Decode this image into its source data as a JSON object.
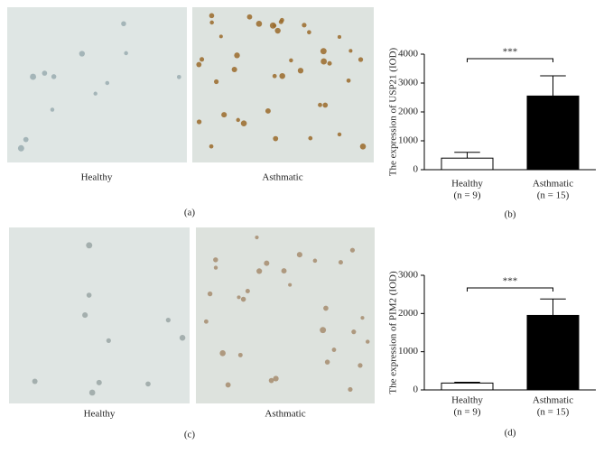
{
  "images": [
    {
      "labels": [
        "Healthy",
        "Asthmatic"
      ],
      "panel": "(a)"
    },
    {
      "labels": [
        "Healthy",
        "Asthmatic"
      ],
      "panel": "(c)"
    }
  ],
  "chart_data": [
    {
      "type": "bar",
      "panel": "(b)",
      "y_label": "The expression of USP21 (IOD)",
      "categories": [
        "Healthy",
        "Asthmatic"
      ],
      "sample_sizes": [
        "(n = 9)",
        "(n = 15)"
      ],
      "values": [
        400,
        2550
      ],
      "errors": [
        200,
        700
      ],
      "colors": [
        "#ffffff",
        "#000000"
      ],
      "significance": "***",
      "ylim": [
        0,
        4000
      ],
      "yticks": [
        0,
        1000,
        2000,
        3000,
        4000
      ]
    },
    {
      "type": "bar",
      "panel": "(d)",
      "y_label": "The expression of PIM2 (IOD)",
      "categories": [
        "Healthy",
        "Asthmatic"
      ],
      "sample_sizes": [
        "(n = 9)",
        "(n = 15)"
      ],
      "values": [
        180,
        1950
      ],
      "errors": [
        20,
        430
      ],
      "colors": [
        "#ffffff",
        "#000000"
      ],
      "significance": "***",
      "ylim": [
        0,
        3000
      ],
      "yticks": [
        0,
        1000,
        2000,
        3000
      ]
    }
  ]
}
